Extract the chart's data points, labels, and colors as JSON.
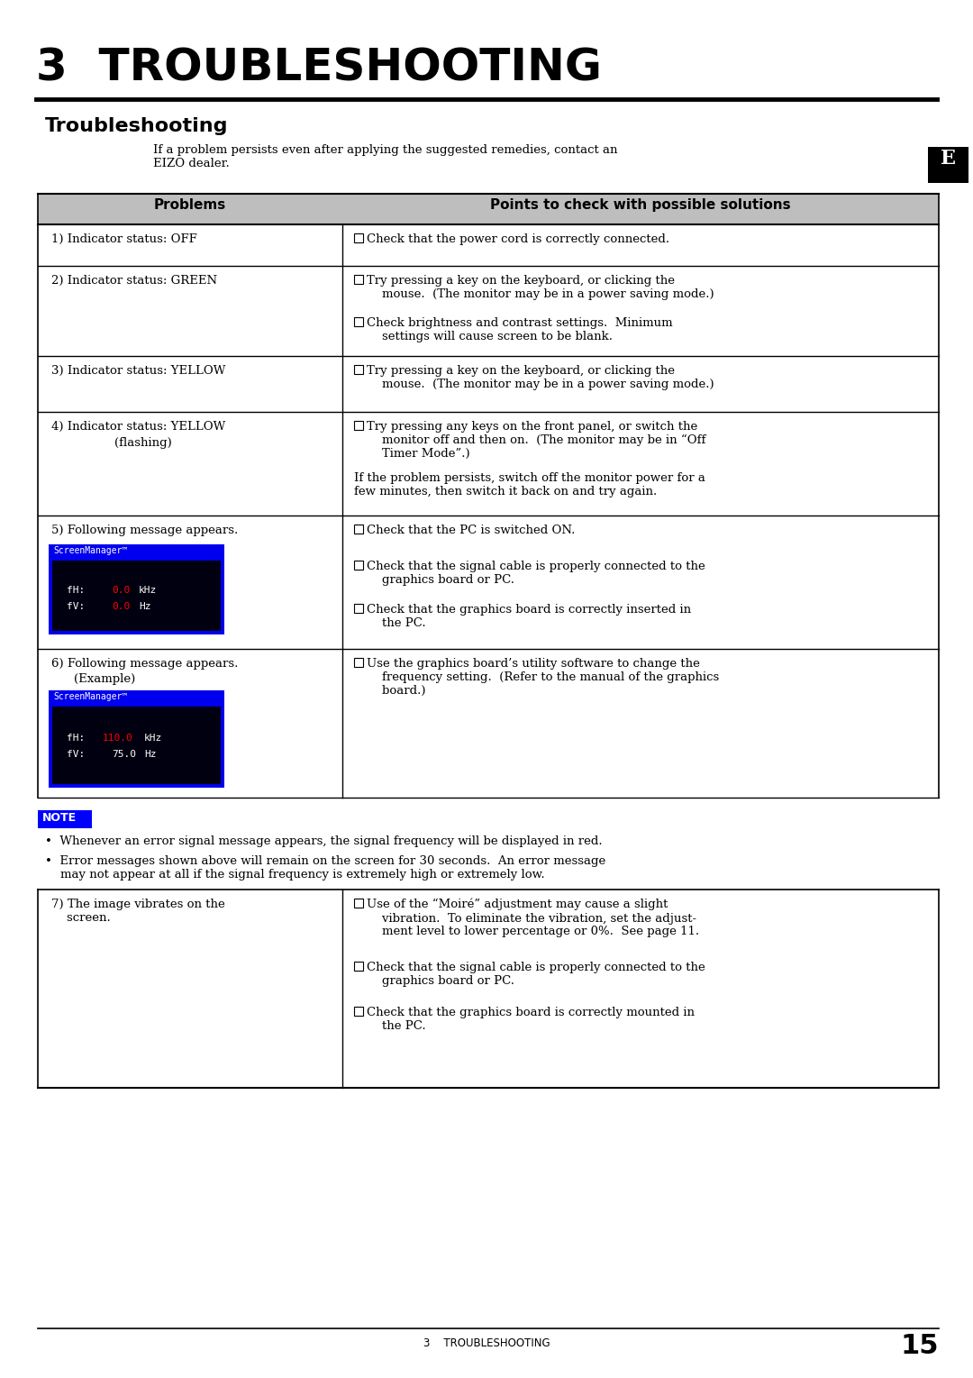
{
  "title": "3  TROUBLESHOOTING",
  "section_title": "Troubleshooting",
  "intro_text": "If a problem persists even after applying the suggested remedies, contact an\nEIZO dealer.",
  "e_label": "E",
  "header_col1": "Problems",
  "header_col2": "Points to check with possible solutions",
  "header_bg": "#BEBEBE",
  "bg_color": "#FFFFFF",
  "note_bg": "#0000FF",
  "note_text": "NOTE",
  "footer_text": "3    TROUBLESHOOTING",
  "footer_page": "15"
}
